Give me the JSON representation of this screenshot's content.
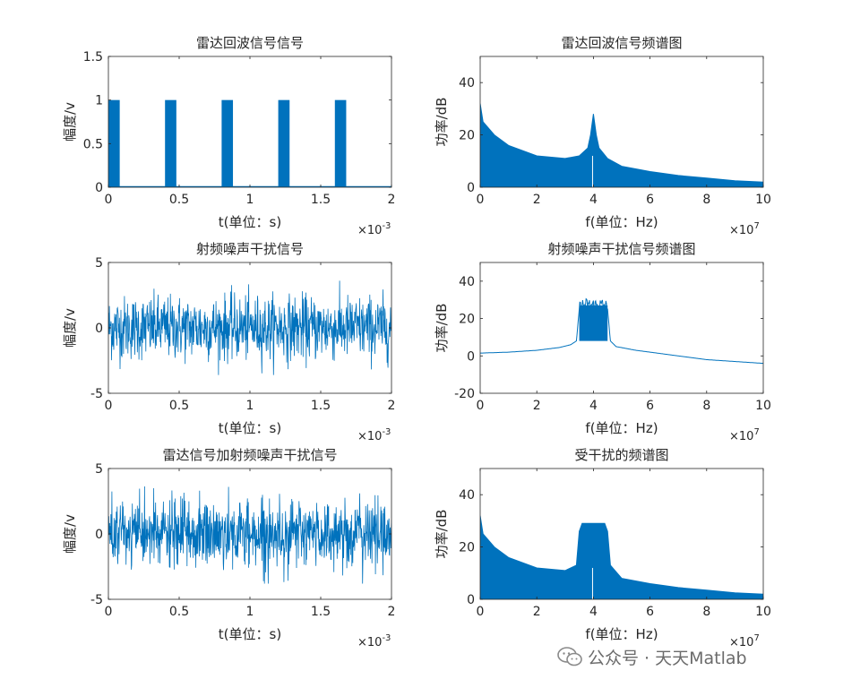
{
  "chart_data": [
    {
      "type": "area",
      "title": "雷达回波信号信号",
      "xlabel": "t(单位：s)",
      "ylabel": "幅度/v",
      "xlim": [
        0,
        0.002
      ],
      "ylim": [
        0,
        1.5
      ],
      "xticks": [
        "0",
        "0.5",
        "1",
        "1.5",
        "2"
      ],
      "yticks": [
        "0",
        "0.5",
        "1",
        "1.5"
      ],
      "x_exponent": "-3",
      "pulse_amplitude": 1,
      "pulse_starts": [
        0,
        0.0004,
        0.0008,
        0.0012,
        0.0016,
        0.002
      ],
      "pulse_width": 8e-05
    },
    {
      "type": "area",
      "title": "雷达回波信号频谱图",
      "xlabel": "f(单位：Hz)",
      "ylabel": "功率/dB",
      "xlim": [
        0,
        100000000
      ],
      "ylim": [
        0,
        50
      ],
      "xticks": [
        "0",
        "2",
        "4",
        "6",
        "8",
        "10"
      ],
      "yticks": [
        "0",
        "20",
        "40"
      ],
      "x_exponent": "7",
      "series": [
        {
          "x": [
            0,
            1000000,
            5000000,
            10000000,
            20000000,
            30000000,
            35000000,
            38000000,
            39000000,
            40000000,
            41000000,
            42000000,
            45000000,
            50000000,
            60000000,
            70000000,
            80000000,
            90000000,
            100000000
          ],
          "y": [
            32,
            25,
            20,
            16,
            12,
            11,
            12,
            15,
            20,
            28,
            20,
            15,
            11,
            8,
            6,
            4.5,
            3.5,
            2.5,
            2
          ]
        }
      ]
    },
    {
      "type": "line",
      "title": "射频噪声干扰信号",
      "xlabel": "t(单位：s)",
      "ylabel": "幅度/v",
      "xlim": [
        0,
        0.002
      ],
      "ylim": [
        -5,
        5
      ],
      "xticks": [
        "0",
        "0.5",
        "1",
        "1.5",
        "2"
      ],
      "yticks": [
        "-5",
        "0",
        "5"
      ],
      "x_exponent": "-3",
      "noise_amplitude": 1.2,
      "noise_peak": 3.6
    },
    {
      "type": "area",
      "title": "射频噪声干扰信号频谱图",
      "xlabel": "f(单位：Hz)",
      "ylabel": "功率/dB",
      "xlim": [
        0,
        100000000
      ],
      "ylim": [
        -20,
        50
      ],
      "xticks": [
        "0",
        "2",
        "4",
        "6",
        "8",
        "10"
      ],
      "yticks": [
        "-20",
        "0",
        "20",
        "40"
      ],
      "x_exponent": "7",
      "series": [
        {
          "x": [
            0,
            10000000,
            20000000,
            28000000,
            32000000,
            34000000,
            35000000,
            36000000,
            40000000,
            44000000,
            45000000,
            46000000,
            48000000,
            55000000,
            65000000,
            80000000,
            100000000
          ],
          "y": [
            1.5,
            2,
            3,
            4.5,
            6,
            8,
            25,
            27,
            27,
            27,
            25,
            8,
            5,
            3,
            1,
            -2,
            -4
          ]
        }
      ]
    },
    {
      "type": "line",
      "title": "雷达信号加射频噪声干扰信号",
      "xlabel": "t(单位：s)",
      "ylabel": "幅度/v",
      "xlim": [
        0,
        0.002
      ],
      "ylim": [
        -5,
        5
      ],
      "xticks": [
        "0",
        "0.5",
        "1",
        "1.5",
        "2"
      ],
      "yticks": [
        "-5",
        "0",
        "5"
      ],
      "x_exponent": "-3",
      "noise_amplitude": 1.3,
      "noise_peak": 3.8
    },
    {
      "type": "area",
      "title": "受干扰的频谱图",
      "xlabel": "f(单位：Hz)",
      "ylabel": "功率/dB",
      "xlim": [
        0,
        100000000
      ],
      "ylim": [
        0,
        50
      ],
      "xticks": [
        "0",
        "2",
        "4",
        "6",
        "8",
        "10"
      ],
      "yticks": [
        "0",
        "20",
        "40"
      ],
      "x_exponent": "7",
      "series": [
        {
          "x": [
            0,
            1000000,
            5000000,
            10000000,
            20000000,
            30000000,
            34000000,
            35000000,
            36000000,
            40000000,
            44000000,
            45000000,
            46000000,
            50000000,
            60000000,
            70000000,
            80000000,
            90000000,
            100000000
          ],
          "y": [
            32,
            25,
            20,
            16,
            12,
            11,
            13,
            26,
            29,
            29,
            29,
            26,
            13,
            8,
            6,
            4.5,
            3.5,
            2.5,
            2
          ]
        }
      ]
    }
  ],
  "watermark": {
    "text": "公众号 · 天天Matlab",
    "icon": "wechat-icon"
  },
  "colors": {
    "series": "#0072BD",
    "axis": "#262626",
    "text": "#262626"
  }
}
